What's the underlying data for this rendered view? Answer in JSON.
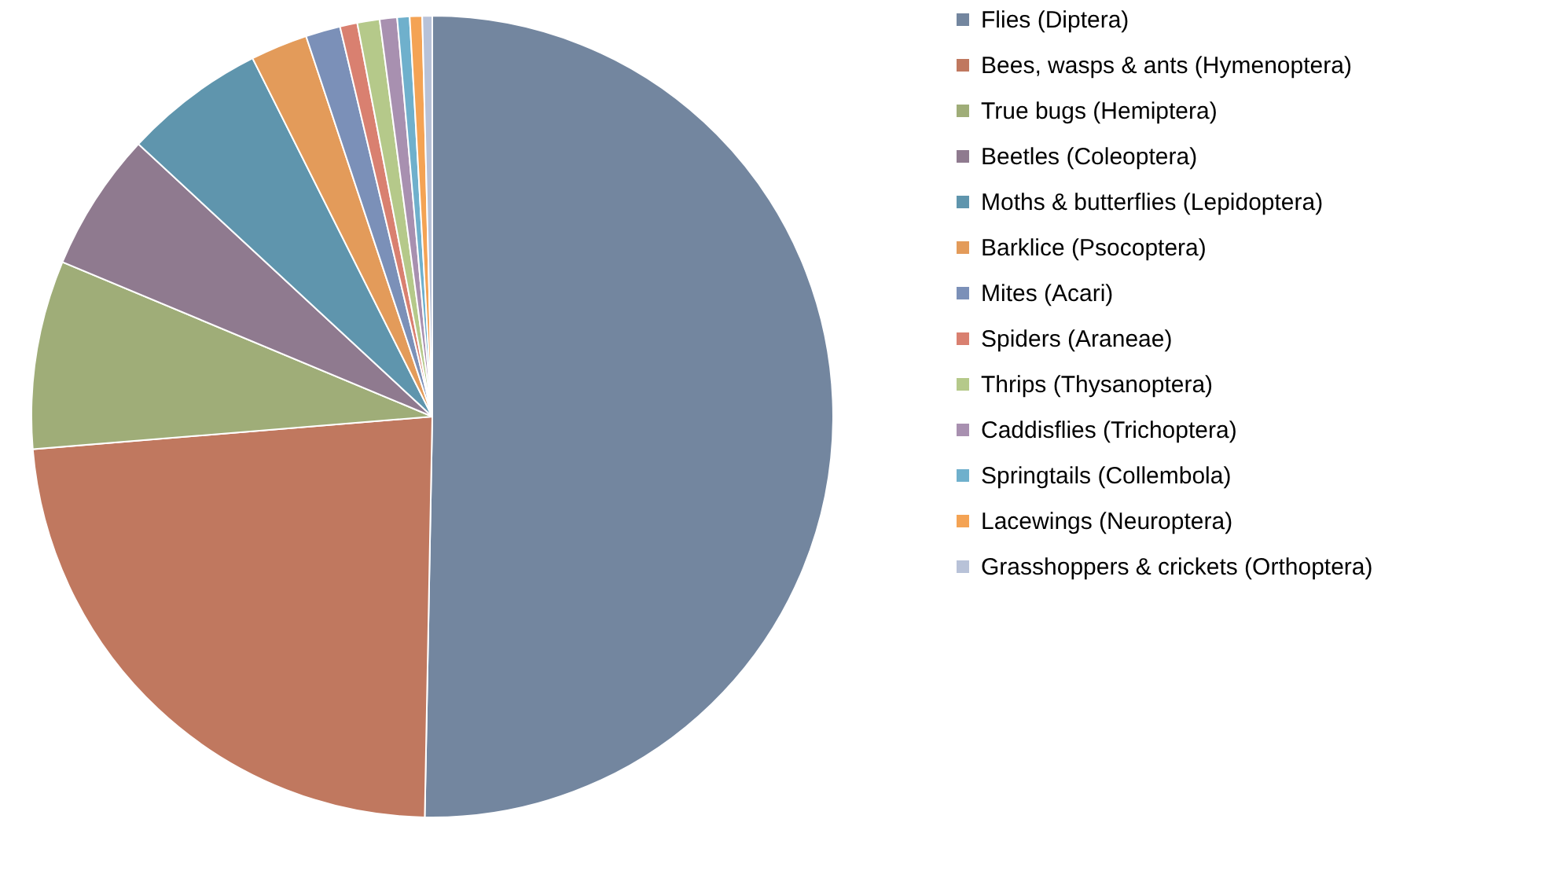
{
  "chart_data": {
    "type": "pie",
    "legend": "right",
    "categories": [
      "Flies (Diptera)",
      "Bees, wasps & ants (Hymenoptera)",
      "True bugs (Hemiptera)",
      "Beetles (Coleoptera)",
      "Moths & butterflies (Lepidoptera)",
      "Barklice (Psocoptera)",
      "Mites (Acari)",
      "Spiders (Araneae)",
      "Thrips (Thysanoptera)",
      "Caddisflies (Trichoptera)",
      "Springtails (Collembola)",
      "Lacewings (Neuroptera)",
      "Grasshoppers & crickets (Orthoptera)"
    ],
    "values": [
      50.3,
      23.4,
      7.6,
      5.6,
      5.7,
      2.3,
      1.4,
      0.7,
      0.9,
      0.7,
      0.5,
      0.5,
      0.4
    ],
    "colors": [
      "#73869f",
      "#c0785f",
      "#9fad78",
      "#8f7a8f",
      "#5f95ad",
      "#e39b5a",
      "#7b90b8",
      "#d98070",
      "#b5c98a",
      "#a890b0",
      "#6fb0cc",
      "#f4a354",
      "#b8c2d8"
    ]
  }
}
